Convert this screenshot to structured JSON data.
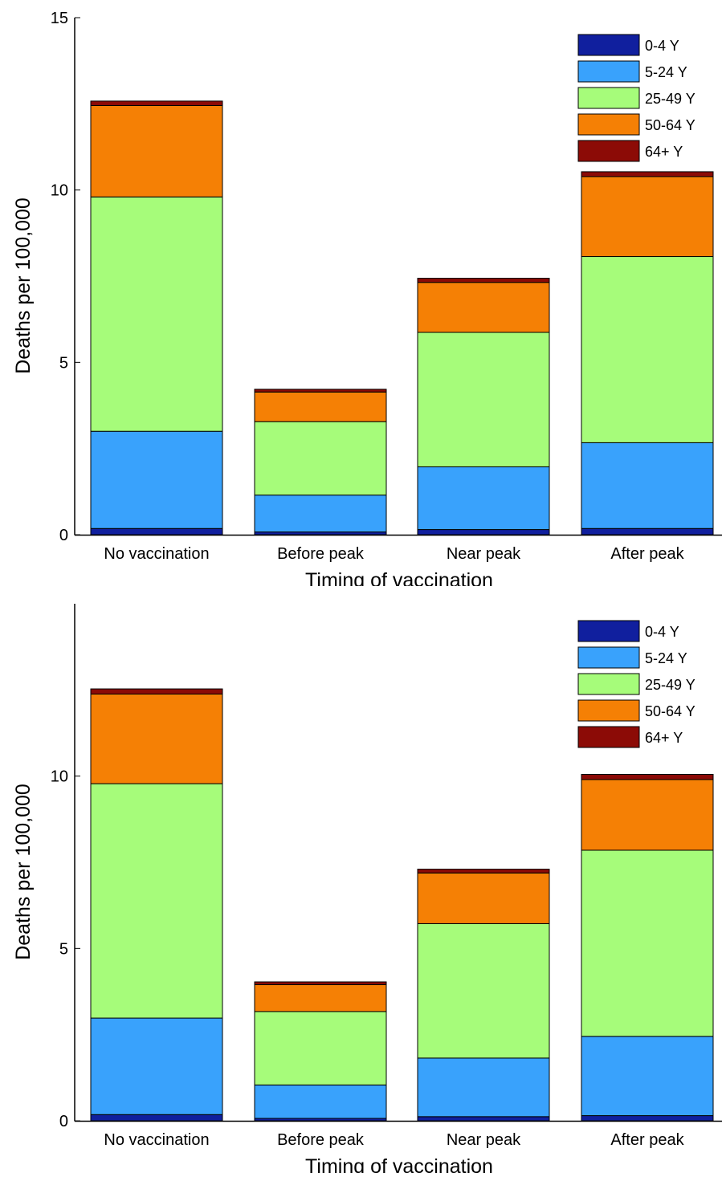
{
  "colors": {
    "0-4 Y": "#101f9e",
    "5-24 Y": "#39a2fc",
    "25-49 Y": "#a6fc7a",
    "50-64 Y": "#f58005",
    "64+ Y": "#8c0b06"
  },
  "chart_data": [
    {
      "type": "bar",
      "stacked": true,
      "title": "",
      "xlabel": "Timing of vaccination",
      "ylabel": "Deaths per 100,000",
      "ylim": [
        0,
        15
      ],
      "yticks": [
        0,
        5,
        10,
        15
      ],
      "grid": false,
      "legend_position": "top-right",
      "categories": [
        "No vaccination",
        "Before peak",
        "Near peak",
        "After peak"
      ],
      "series": [
        {
          "name": "0-4 Y",
          "values": [
            0.18,
            0.08,
            0.15,
            0.18
          ]
        },
        {
          "name": "5-24 Y",
          "values": [
            2.82,
            1.07,
            1.82,
            2.49
          ]
        },
        {
          "name": "25-49 Y",
          "values": [
            6.8,
            2.13,
            3.9,
            5.4
          ]
        },
        {
          "name": "50-64 Y",
          "values": [
            2.65,
            0.86,
            1.45,
            2.32
          ]
        },
        {
          "name": "64+ Y",
          "values": [
            0.13,
            0.08,
            0.12,
            0.14
          ]
        }
      ]
    },
    {
      "type": "bar",
      "stacked": true,
      "title": "",
      "xlabel": "Timing of vaccination",
      "ylabel": "Deaths per 100,000",
      "ylim": [
        0,
        15
      ],
      "yticks": [
        0,
        5,
        10
      ],
      "grid": false,
      "legend_position": "top-right",
      "categories": [
        "No vaccination",
        "Before peak",
        "Near peak",
        "After peak"
      ],
      "series": [
        {
          "name": "0-4 Y",
          "values": [
            0.18,
            0.07,
            0.12,
            0.15
          ]
        },
        {
          "name": "5-24 Y",
          "values": [
            2.8,
            0.97,
            1.7,
            2.3
          ]
        },
        {
          "name": "25-49 Y",
          "values": [
            6.8,
            2.13,
            3.9,
            5.4
          ]
        },
        {
          "name": "50-64 Y",
          "values": [
            2.6,
            0.78,
            1.47,
            2.05
          ]
        },
        {
          "name": "64+ Y",
          "values": [
            0.15,
            0.08,
            0.11,
            0.15
          ]
        }
      ]
    }
  ]
}
